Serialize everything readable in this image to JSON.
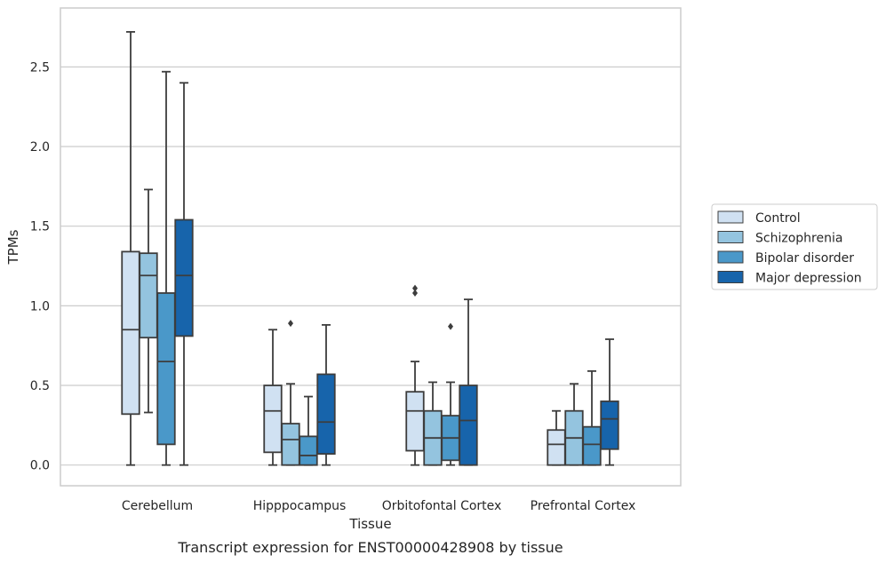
{
  "caption": "Transcript expression for ENST00000428908 by tissue",
  "colors": {
    "Control": "#d0e1f2",
    "Schizophrenia": "#94c4df",
    "Bipolar disorder": "#4a98c9",
    "Major depression": "#1764ab",
    "box_edge": "#3d3d3d",
    "grid": "#cccccc",
    "frame": "#cccccc"
  },
  "chart_data": {
    "type": "box",
    "title": "",
    "xlabel": "Tissue",
    "ylabel": "TPMs",
    "ylim": [
      -0.13,
      2.87
    ],
    "yticks": [
      0.0,
      0.5,
      1.0,
      1.5,
      2.0,
      2.5
    ],
    "ytick_labels": [
      "0.0",
      "0.5",
      "1.0",
      "1.5",
      "2.0",
      "2.5"
    ],
    "grid": true,
    "legend_position": "right, outside plot",
    "categories": [
      "Cerebellum",
      "Hipppocampus",
      "Orbitofontal Cortex",
      "Prefrontal Cortex"
    ],
    "series": [
      {
        "name": "Control",
        "boxes": [
          {
            "whisker_low": 0.0,
            "q1": 0.32,
            "median": 0.85,
            "q3": 1.34,
            "whisker_high": 2.72,
            "outliers": []
          },
          {
            "whisker_low": 0.0,
            "q1": 0.08,
            "median": 0.34,
            "q3": 0.5,
            "whisker_high": 0.85,
            "outliers": []
          },
          {
            "whisker_low": 0.0,
            "q1": 0.09,
            "median": 0.34,
            "q3": 0.46,
            "whisker_high": 0.65,
            "outliers": [
              1.08,
              1.11
            ]
          },
          {
            "whisker_low": 0.0,
            "q1": 0.0,
            "median": 0.13,
            "q3": 0.22,
            "whisker_high": 0.34,
            "outliers": []
          }
        ]
      },
      {
        "name": "Schizophrenia",
        "boxes": [
          {
            "whisker_low": 0.33,
            "q1": 0.8,
            "median": 1.19,
            "q3": 1.33,
            "whisker_high": 1.73,
            "outliers": []
          },
          {
            "whisker_low": 0.0,
            "q1": 0.0,
            "median": 0.16,
            "q3": 0.26,
            "whisker_high": 0.51,
            "outliers": [
              0.89
            ]
          },
          {
            "whisker_low": 0.0,
            "q1": 0.0,
            "median": 0.17,
            "q3": 0.34,
            "whisker_high": 0.52,
            "outliers": []
          },
          {
            "whisker_low": 0.0,
            "q1": 0.0,
            "median": 0.17,
            "q3": 0.34,
            "whisker_high": 0.51,
            "outliers": []
          }
        ]
      },
      {
        "name": "Bipolar disorder",
        "boxes": [
          {
            "whisker_low": 0.0,
            "q1": 0.13,
            "median": 0.65,
            "q3": 1.08,
            "whisker_high": 2.47,
            "outliers": []
          },
          {
            "whisker_low": 0.0,
            "q1": 0.0,
            "median": 0.06,
            "q3": 0.18,
            "whisker_high": 0.43,
            "outliers": []
          },
          {
            "whisker_low": 0.0,
            "q1": 0.03,
            "median": 0.17,
            "q3": 0.31,
            "whisker_high": 0.52,
            "outliers": [
              0.87
            ]
          },
          {
            "whisker_low": 0.0,
            "q1": 0.0,
            "median": 0.13,
            "q3": 0.24,
            "whisker_high": 0.59,
            "outliers": []
          }
        ]
      },
      {
        "name": "Major depression",
        "boxes": [
          {
            "whisker_low": 0.0,
            "q1": 0.81,
            "median": 1.19,
            "q3": 1.54,
            "whisker_high": 2.4,
            "outliers": []
          },
          {
            "whisker_low": 0.0,
            "q1": 0.07,
            "median": 0.27,
            "q3": 0.57,
            "whisker_high": 0.88,
            "outliers": []
          },
          {
            "whisker_low": 0.0,
            "q1": 0.0,
            "median": 0.28,
            "q3": 0.5,
            "whisker_high": 1.04,
            "outliers": []
          },
          {
            "whisker_low": 0.0,
            "q1": 0.1,
            "median": 0.29,
            "q3": 0.4,
            "whisker_high": 0.79,
            "outliers": []
          }
        ]
      }
    ]
  }
}
